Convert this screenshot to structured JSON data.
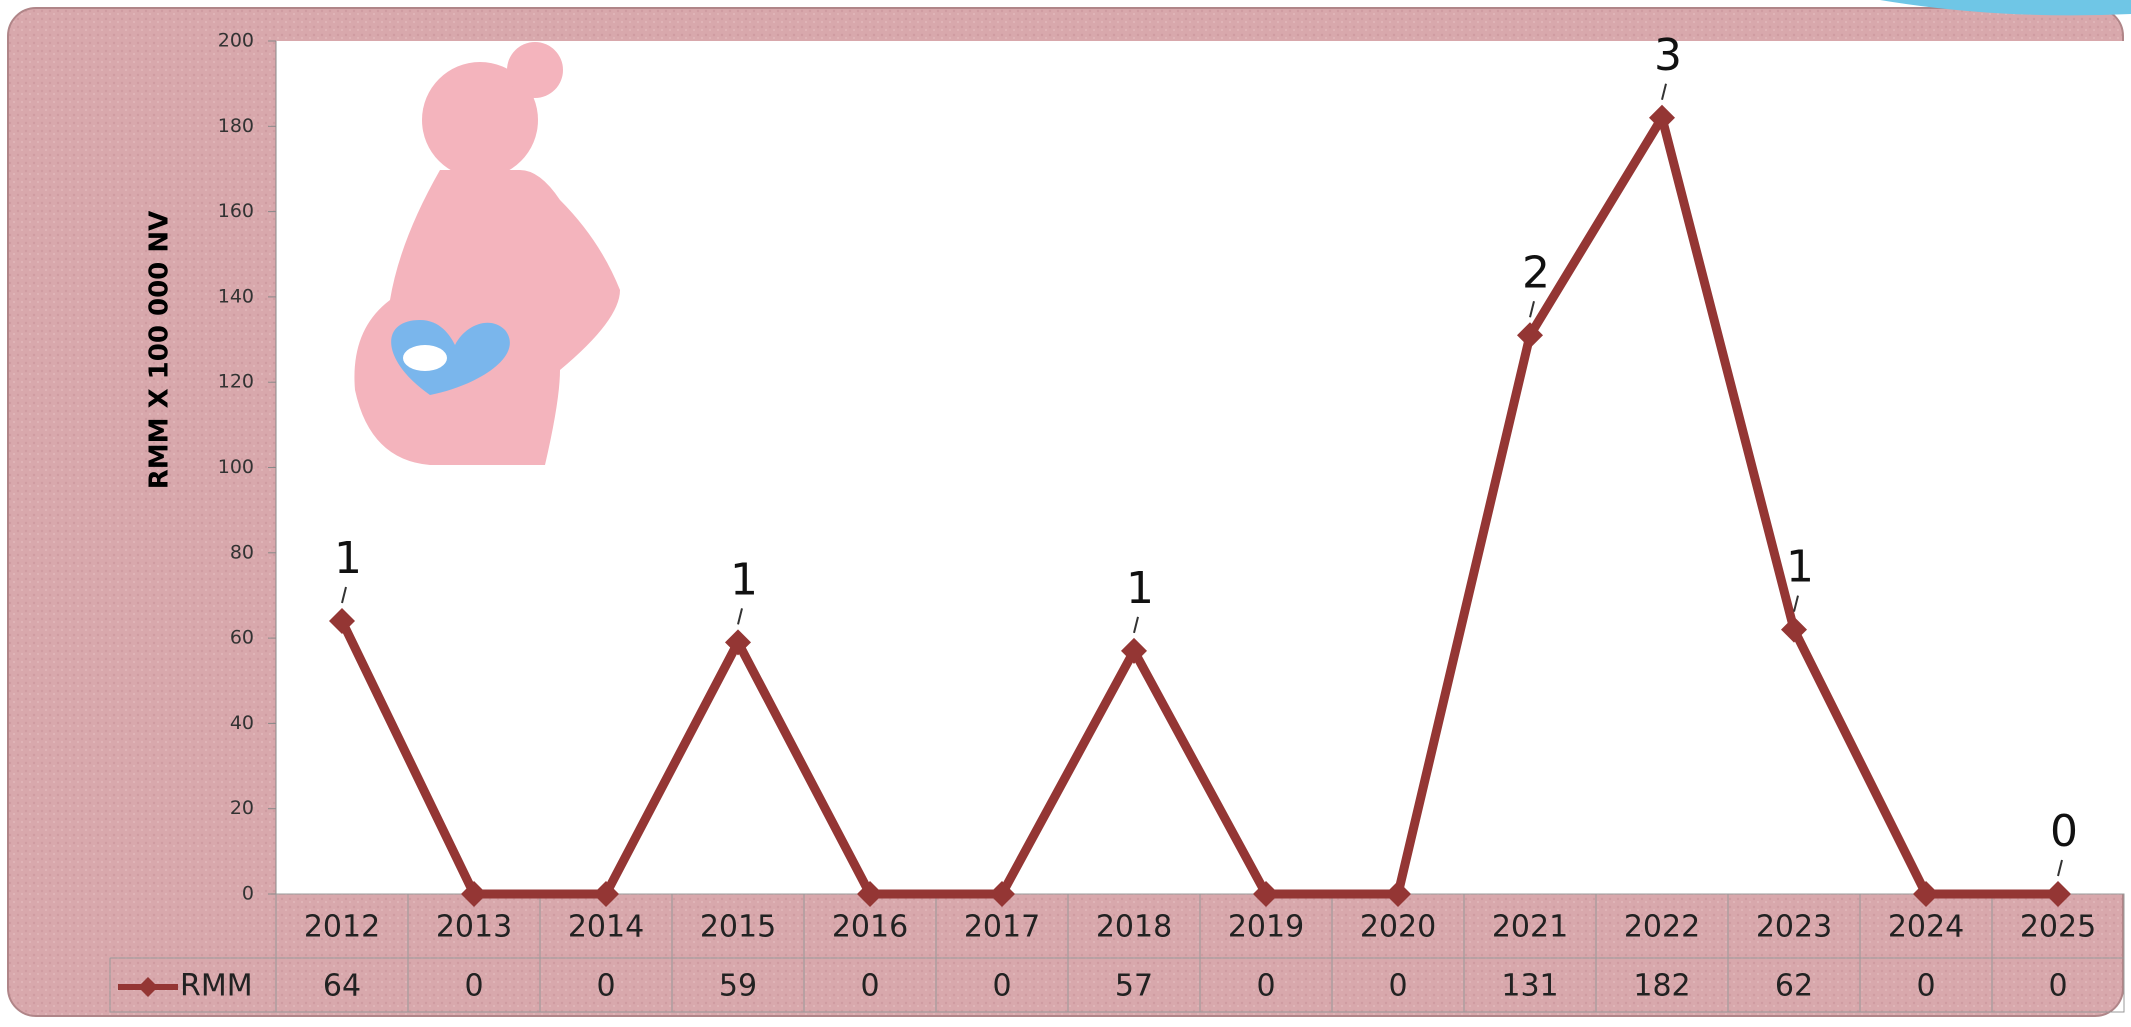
{
  "chart_data": {
    "type": "line",
    "y_axis_label": "RMM X 100 000 NV",
    "categories": [
      "2012",
      "2013",
      "2014",
      "2015",
      "2016",
      "2017",
      "2018",
      "2019",
      "2020",
      "2021",
      "2022",
      "2023",
      "2024",
      "2025"
    ],
    "series": [
      {
        "name": "RMM",
        "color": "#943634",
        "values": [
          64,
          0,
          0,
          59,
          0,
          0,
          57,
          0,
          0,
          131,
          182,
          62,
          0,
          0
        ]
      }
    ],
    "annotations": [
      {
        "category": "2012",
        "label": "1"
      },
      {
        "category": "2015",
        "label": "1"
      },
      {
        "category": "2018",
        "label": "1"
      },
      {
        "category": "2021",
        "label": "2"
      },
      {
        "category": "2022",
        "label": "3"
      },
      {
        "category": "2023",
        "label": "1"
      },
      {
        "category": "2025",
        "label": "0"
      }
    ],
    "ylim": [
      0,
      200
    ],
    "yticks": [
      0,
      20,
      40,
      60,
      80,
      100,
      120,
      140,
      160,
      180,
      200
    ],
    "data_table": true
  }
}
